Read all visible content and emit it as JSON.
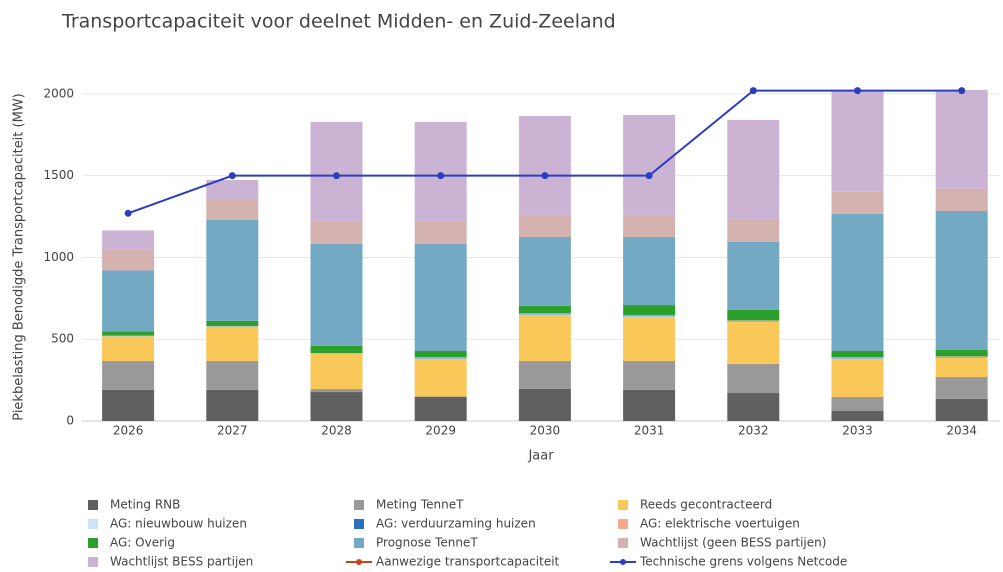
{
  "chart_data": {
    "type": "stacked-bar-line",
    "title": "Transportcapaciteit voor deelnet Midden- en Zuid-Zeeland",
    "x_label": "Jaar",
    "y_label": "Piekbelasting Benodigde Transportcapaciteit (MW)",
    "categories": [
      "2026",
      "2027",
      "2028",
      "2029",
      "2030",
      "2031",
      "2032",
      "2033",
      "2034"
    ],
    "ylim": [
      0,
      2140
    ],
    "yticks": [
      0,
      500,
      1000,
      1500,
      2000
    ],
    "grid": true,
    "series": [
      {
        "name": "Meting RNB",
        "color": "#606060",
        "values": [
          190,
          190,
          177,
          147,
          196,
          190,
          171,
          61,
          135
        ]
      },
      {
        "name": "Meting TenneT",
        "color": "#999999",
        "values": [
          177,
          177,
          19,
          3,
          171,
          177,
          178,
          86,
          134
        ]
      },
      {
        "name": "Reeds gecontracteerd",
        "color": "#fac858",
        "values": [
          150,
          208,
          214,
          229,
          281,
          269,
          256,
          232,
          116
        ]
      },
      {
        "name": "AG: nieuwbouw huizen",
        "color": "#cfe2f7",
        "values": [
          2,
          2,
          2,
          4,
          4,
          4,
          4,
          4,
          4
        ]
      },
      {
        "name": "AG: verduurzaming huizen",
        "color": "#2c6fc0",
        "values": [
          1,
          1,
          1,
          3,
          3,
          3,
          3,
          3,
          3
        ]
      },
      {
        "name": "AG: elektrische voertuigen",
        "color": "#f4a98a",
        "values": [
          2,
          2,
          2,
          3,
          3,
          3,
          3,
          3,
          3
        ]
      },
      {
        "name": "AG: Overig",
        "color": "#2ca02c",
        "values": [
          25,
          32,
          44,
          39,
          45,
          63,
          64,
          39,
          39
        ]
      },
      {
        "name": "Prognose TenneT",
        "color": "#74a9c4",
        "values": [
          373,
          617,
          624,
          655,
          422,
          416,
          416,
          838,
          850
        ]
      },
      {
        "name": "Wachtlijst (geen BESS partijen)",
        "color": "#d3b2b0",
        "values": [
          129,
          129,
          134,
          134,
          129,
          129,
          134,
          135,
          135
        ]
      },
      {
        "name": "Wachtlijst BESS partijen",
        "color": "#cab3d3",
        "values": [
          116,
          116,
          612,
          612,
          611,
          617,
          612,
          617,
          605
        ]
      }
    ],
    "lines": [
      {
        "name": "Aanwezige transportcapaciteit",
        "color": "#c8441c",
        "values": [
          null,
          null,
          null,
          null,
          null,
          null,
          null,
          null,
          null
        ]
      },
      {
        "name": "Technische grens volgens Netcode",
        "color": "#2c3ec0",
        "values": [
          1270,
          1500,
          1500,
          1500,
          1500,
          1500,
          2020,
          2020,
          2020
        ]
      }
    ]
  }
}
